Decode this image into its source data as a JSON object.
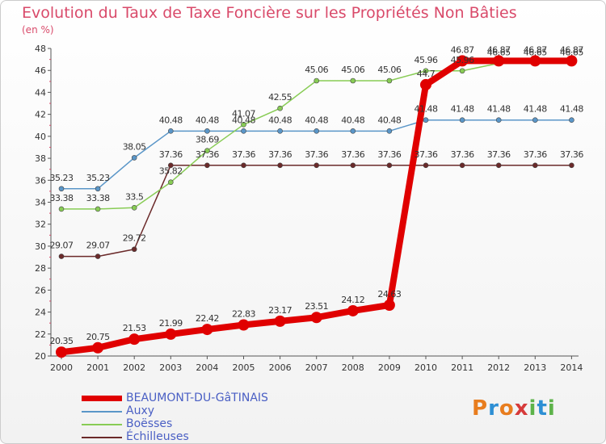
{
  "chart_data": {
    "type": "line",
    "title": "Evolution du Taux de Taxe Foncière sur les Propriétés Non Bâties",
    "ylabel": "(en %)",
    "xlabel": "",
    "ylim": [
      20,
      48
    ],
    "yticks": [
      "20",
      "22",
      "24",
      "26",
      "28",
      "30",
      "32",
      "34",
      "36",
      "38",
      "40",
      "42",
      "44",
      "46",
      "48"
    ],
    "categories": [
      "2000",
      "2001",
      "2002",
      "2003",
      "2004",
      "2005",
      "2006",
      "2007",
      "2008",
      "2009",
      "2010",
      "2011",
      "2012",
      "2013",
      "2014"
    ],
    "series": [
      {
        "name": "BEAUMONT-DU-GâTINAIS",
        "color": "#e00000",
        "values": [
          20.35,
          20.75,
          21.53,
          21.99,
          22.42,
          22.83,
          23.17,
          23.51,
          24.12,
          24.63,
          44.7,
          46.87,
          46.87,
          46.87,
          46.87
        ],
        "labels": [
          "20.35",
          "20.75",
          "21.53",
          "21.99",
          "22.42",
          "22.83",
          "23.17",
          "23.51",
          "24.12",
          "24.63",
          "44.7",
          "46.87",
          "46.87",
          "46.87",
          "46.87"
        ]
      },
      {
        "name": "Auxy",
        "color": "#5a96c8",
        "values": [
          35.23,
          35.23,
          38.05,
          40.48,
          40.48,
          40.48,
          40.48,
          40.48,
          40.48,
          40.48,
          41.48,
          41.48,
          41.48,
          41.48,
          41.48
        ],
        "labels": [
          "35.23",
          "35.23",
          "38.05",
          "40.48",
          "40.48",
          "40.48",
          "40.48",
          "40.48",
          "40.48",
          "40.48",
          "41.48",
          "41.48",
          "41.48",
          "41.48",
          "41.48"
        ]
      },
      {
        "name": "Boësses",
        "color": "#88cc55",
        "values": [
          33.38,
          33.38,
          33.5,
          35.82,
          38.69,
          41.07,
          42.55,
          45.06,
          45.06,
          45.06,
          45.96,
          45.96,
          46.65,
          46.65,
          46.65
        ],
        "labels": [
          "33.38",
          "33.38",
          "33.5",
          "35.82",
          "38.69",
          "41.07",
          "42.55",
          "45.06",
          "45.06",
          "45.06",
          "45.96",
          "45.96",
          "46.65",
          "46.65",
          "46.65"
        ]
      },
      {
        "name": "Échilleuses",
        "color": "#6b2a2a",
        "values": [
          29.07,
          29.07,
          29.72,
          37.36,
          37.36,
          37.36,
          37.36,
          37.36,
          37.36,
          37.36,
          37.36,
          37.36,
          37.36,
          37.36,
          37.36
        ],
        "labels": [
          "29.07",
          "29.07",
          "29.72",
          "37.36",
          "37.36",
          "37.36",
          "37.36",
          "37.36",
          "37.36",
          "37.36",
          "37.36",
          "37.36",
          "37.36",
          "37.36",
          "37.36"
        ]
      }
    ],
    "legend": {
      "position": "bottom-left"
    },
    "grid": false
  },
  "logo": {
    "letters": [
      "P",
      "r",
      "o",
      "x",
      "i",
      "t",
      "i"
    ],
    "colors": [
      "#e87d1e",
      "#2d8fd4",
      "#e87d1e",
      "#d63a3a",
      "#5db34a",
      "#2d8fd4",
      "#5db34a"
    ]
  }
}
